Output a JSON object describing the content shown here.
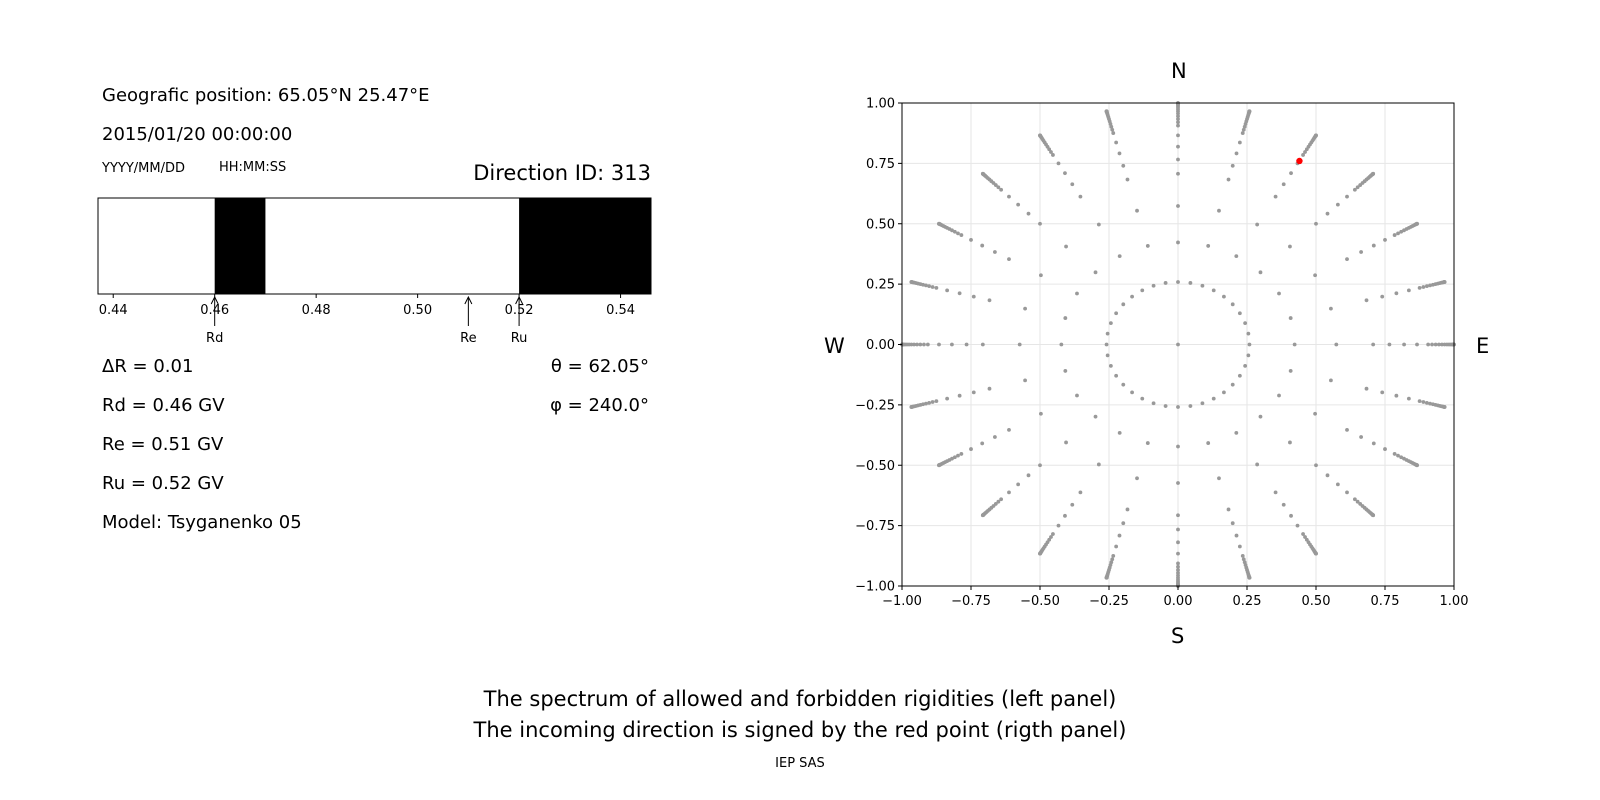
{
  "header": {
    "position_line": "Geografic position: 65.05°N 25.47°E",
    "datetime_line": "2015/01/20 00:00:00",
    "date_format_label": "YYYY/MM/DD",
    "time_format_label": "HH:MM:SS",
    "direction_id": "Direction ID: 313"
  },
  "results": {
    "delta_r": "ΔR = 0.01",
    "rd": "Rd = 0.46 GV",
    "re": "Re = 0.51 GV",
    "ru": "Ru = 0.52 GV",
    "model": "Model: Tsyganenko 05",
    "theta": "θ = 62.05°",
    "phi": "φ = 240.0°"
  },
  "compass": {
    "north": "N",
    "south": "S",
    "west": "W",
    "east": "E"
  },
  "caption": {
    "line1": "The spectrum of allowed and forbidden rigidities (left panel)",
    "line2": "The incoming direction is signed by the red point (rigth panel)",
    "credit": "IEP SAS"
  },
  "colors": {
    "forbidden": "#000000",
    "allowed": "#ffffff",
    "grid_point": "#999999",
    "selected_point": "#ff0000"
  },
  "chart_data": [
    {
      "type": "bar",
      "xlim": [
        0.437,
        0.546
      ],
      "ticks": [
        "0.44",
        "0.46",
        "0.48",
        "0.50",
        "0.52",
        "0.54"
      ],
      "forbidden_bands": [
        [
          0.46,
          0.47
        ],
        [
          0.52,
          0.546
        ]
      ],
      "markers": [
        {
          "label": "Rd",
          "value": 0.46
        },
        {
          "label": "Re",
          "value": 0.51
        },
        {
          "label": "Ru",
          "value": 0.52
        }
      ]
    },
    {
      "type": "scatter",
      "xlim": [
        -1.0,
        1.0
      ],
      "ylim": [
        -1.0,
        1.0
      ],
      "grid": true,
      "xticks": [
        "−1.00",
        "−0.75",
        "−0.50",
        "−0.25",
        "0.00",
        "0.25",
        "0.50",
        "0.75",
        "1.00"
      ],
      "yticks": [
        "−1.00",
        "−0.75",
        "−0.50",
        "−0.25",
        "0.00",
        "0.25",
        "0.50",
        "0.75",
        "1.00"
      ],
      "direction_grid": {
        "rings_deg": [
          0,
          15,
          25,
          35,
          45,
          50,
          55,
          60,
          65,
          67,
          69,
          71,
          73,
          75,
          77,
          79,
          81,
          83,
          85,
          86,
          87,
          88,
          89,
          90
        ],
        "azimuth_step_deg": 15,
        "inner_ring_deg": 15,
        "inner_ring_step_deg": 10
      },
      "selected": {
        "x": 0.44,
        "y": 0.76
      }
    }
  ]
}
